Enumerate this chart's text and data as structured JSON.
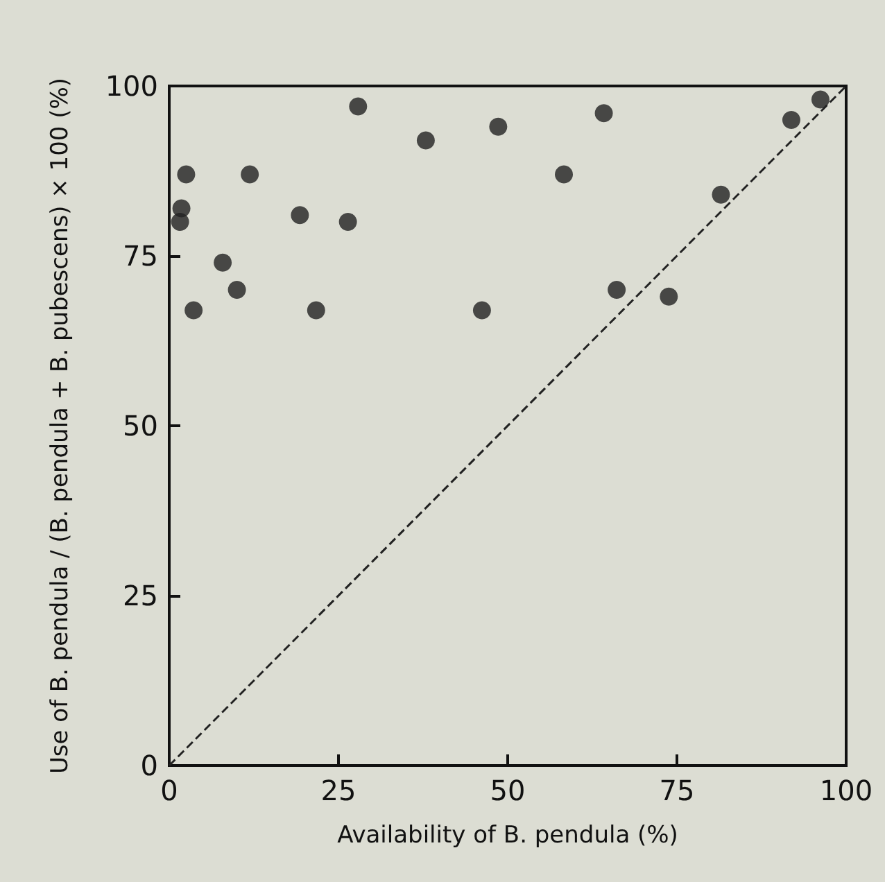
{
  "chart_data": {
    "type": "scatter",
    "xlabel": "Availability of B. pendula (%)",
    "ylabel": "Use of B. pendula / (B. pendula + B. pubescens) × 100 (%)",
    "xlim": [
      0,
      100
    ],
    "ylim": [
      0,
      100
    ],
    "xticks": [
      0,
      25,
      50,
      75,
      100
    ],
    "yticks": [
      0,
      25,
      50,
      75,
      100
    ],
    "grid": false,
    "marker": "circle",
    "series": [
      {
        "color": "#222222",
        "x": [
          27.9,
          37.9,
          48.6,
          2.5,
          11.9,
          1.8,
          1.6,
          19.3,
          26.4,
          7.9,
          10.0,
          3.6,
          21.7,
          46.2,
          64.2,
          58.3,
          81.5,
          91.9,
          96.2,
          66.1,
          73.8
        ],
        "values": [
          97,
          92,
          94,
          87,
          87,
          82,
          80,
          81,
          80,
          74,
          70,
          67,
          67,
          67,
          96,
          87,
          84,
          95,
          98,
          70,
          69
        ]
      },
      {
        "type": "line",
        "color": "#222222",
        "line_style": "dashed",
        "marker": "none",
        "x": [
          0,
          100
        ],
        "values": [
          0,
          100
        ]
      }
    ]
  }
}
